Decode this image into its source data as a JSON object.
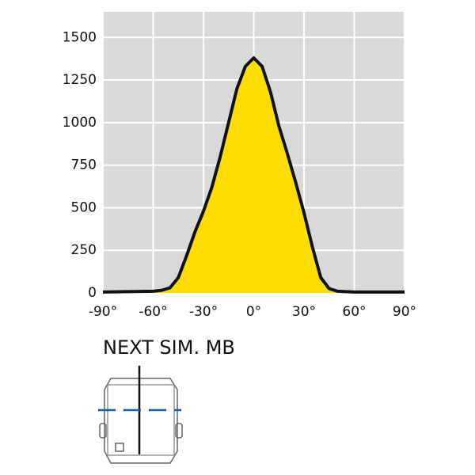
{
  "chart_data": {
    "type": "area",
    "title": "NEXT SIM. MB",
    "x": [
      -90,
      -60,
      -55,
      -50,
      -45,
      -40,
      -35,
      -30,
      -25,
      -20,
      -15,
      -10,
      -5,
      0,
      5,
      10,
      15,
      20,
      25,
      30,
      35,
      40,
      45,
      50,
      60,
      90
    ],
    "values": [
      5,
      10,
      15,
      30,
      90,
      220,
      360,
      480,
      620,
      800,
      1000,
      1200,
      1330,
      1380,
      1330,
      1180,
      980,
      820,
      650,
      470,
      270,
      90,
      25,
      10,
      5,
      5
    ],
    "color": "#ffdd00",
    "line_color": "#111111",
    "xlim": [
      -90,
      90
    ],
    "ylim": [
      0,
      1650
    ],
    "xticks": [
      {
        "value": -90,
        "label": "-90°"
      },
      {
        "value": -60,
        "label": "-60°"
      },
      {
        "value": -30,
        "label": "-30°"
      },
      {
        "value": 0,
        "label": "0°"
      },
      {
        "value": 30,
        "label": "30°"
      },
      {
        "value": 60,
        "label": "60°"
      },
      {
        "value": 90,
        "label": "90°"
      }
    ],
    "yticks": [
      0,
      250,
      500,
      750,
      1000,
      1250,
      1500
    ],
    "grid": true
  }
}
